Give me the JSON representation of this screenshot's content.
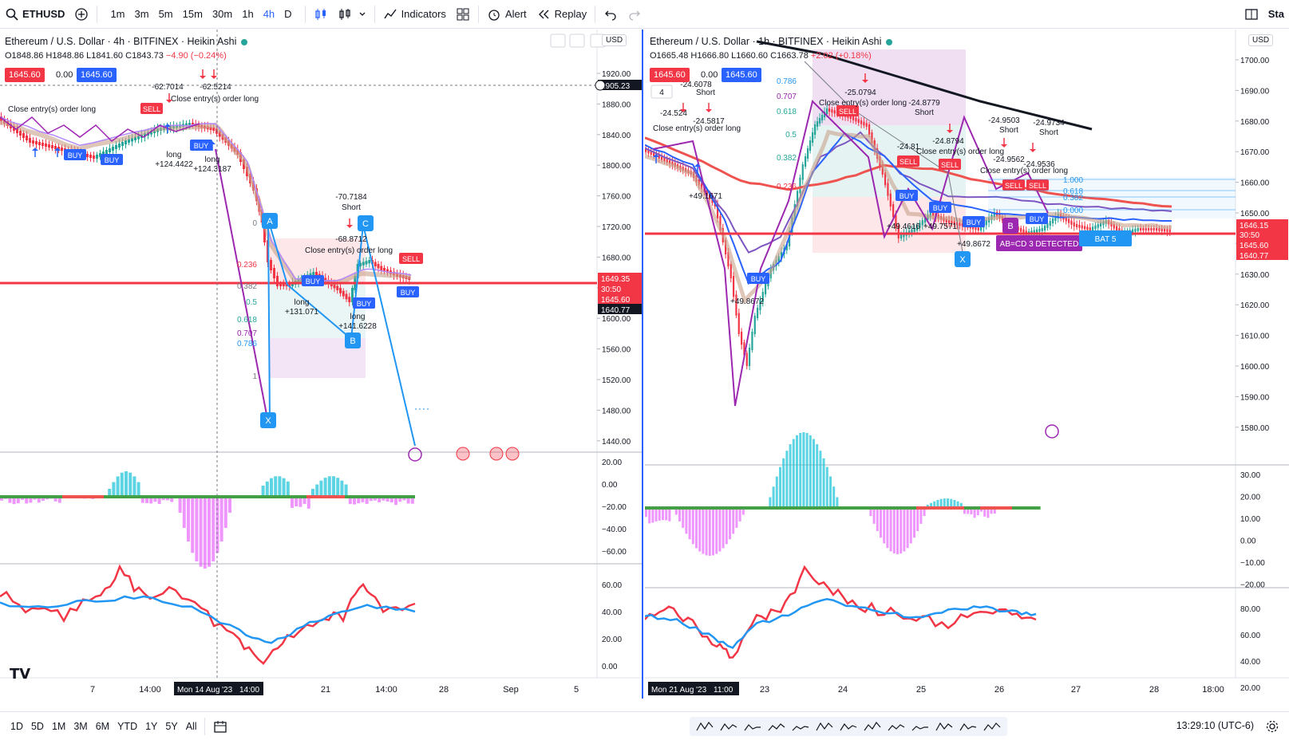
{
  "toolbar": {
    "symbol": "ETHUSD",
    "timeframes": [
      "1m",
      "3m",
      "5m",
      "15m",
      "30m",
      "1h",
      "4h",
      "D"
    ],
    "active_timeframe": "4h",
    "indicators_label": "Indicators",
    "alert_label": "Alert",
    "replay_label": "Replay",
    "right_partial": "Sta"
  },
  "left_chart": {
    "title": "Ethereum / U.S. Dollar · 4h · BITFINEX · Heikin Ashi",
    "ohlc_o": "O1848.86",
    "ohlc_h": "H1848.86",
    "ohlc_l": "L1841.60",
    "ohlc_c": "C1843.73",
    "ohlc_chg": "−4.90 (−0.24%)",
    "sell_price": "1645.60",
    "spread": "0.00",
    "buy_price": "1645.60",
    "currency": "USD",
    "price_axis": [
      "1920.00",
      "1880.00",
      "1840.00",
      "1800.00",
      "1760.00",
      "1720.00",
      "1680.00",
      "1640.00",
      "1600.00",
      "1560.00",
      "1520.00",
      "1480.00",
      "1440.00"
    ],
    "crosshair_price": "1905.23",
    "last_price": "1649.35",
    "countdown": "30:50",
    "bid": "1645.60",
    "support": "1640.77",
    "macd_axis": [
      "20.00",
      "0.00",
      "−20.00",
      "−40.00",
      "−60.00"
    ],
    "rsi_axis": [
      "60.00",
      "40.00",
      "20.00",
      "0.00"
    ],
    "time_axis": [
      "7",
      "14:00",
      "21",
      "14:00",
      "28",
      "Sep",
      "5"
    ],
    "crosshair_time": "Mon 14 Aug '23",
    "crosshair_hour": "14:00",
    "crosshair_hour_right": "14:00",
    "pattern_points": [
      "X",
      "A",
      "B",
      "C"
    ],
    "fib_levels": [
      "0",
      "0.236",
      "0.382",
      "0.5",
      "0.618",
      "0.707",
      "0.786",
      "1"
    ],
    "annotations": [
      "-70.7184",
      "Short",
      "-68.8712",
      "Close entry(s) order long",
      "+131.071",
      "+141.6228",
      "long",
      "-62.7014",
      "-62.5214",
      "+124.4422",
      "+124.3187",
      "Close entry(s) order long"
    ],
    "signals": [
      "SELL",
      "BUY",
      "BUY",
      "SELL",
      "BUY"
    ]
  },
  "right_chart": {
    "title": "Ethereum / U.S. Dollar · 1h · BITFINEX · Heikin Ashi",
    "ohlc_o": "O1665.48",
    "ohlc_h": "H1666.80",
    "ohlc_l": "L1660.60",
    "ohlc_c": "C1663.78",
    "ohlc_chg": "+2.02 (+0.18%)",
    "sell_price": "1645.60",
    "spread": "0.00",
    "buy_price": "1645.60",
    "currency": "USD",
    "price_axis": [
      "1700.00",
      "1690.00",
      "1680.00",
      "1670.00",
      "1660.00",
      "1650.00",
      "1640.00",
      "1630.00",
      "1620.00",
      "1610.00",
      "1600.00",
      "1590.00",
      "1580.00"
    ],
    "last_price": "1646.15",
    "countdown": "30:50",
    "bid": "1645.60",
    "support": "1640.77",
    "macd_axis": [
      "30.00",
      "20.00",
      "10.00",
      "0.00",
      "−10.00",
      "−20.00"
    ],
    "rsi_axis": [
      "80.00",
      "60.00",
      "40.00",
      "20.00"
    ],
    "time_axis": [
      "23",
      "24",
      "25",
      "26",
      "27",
      "28",
      "18:00"
    ],
    "crosshair_time": "Mon 21 Aug '23",
    "crosshair_hour": "11:00",
    "fib_levels": [
      "0.786",
      "0.707",
      "0.618",
      "0.5",
      "0.382",
      "0.236"
    ],
    "fib_levels_right": [
      "1.000",
      "0.618",
      "0.382",
      "0.000"
    ],
    "annotations": [
      "-25.0794",
      "Close entry(s) order long",
      "-24.8779",
      "Short",
      "-24.81",
      "-24.8794",
      "-24.524",
      "-24.5817",
      "+49.1671",
      "+49.4616",
      "+49.7571",
      "+49.8672",
      "-24.9562",
      "-24.9536",
      "-24.9734",
      "Short"
    ],
    "pattern_badge": "AB=CD 3 DETECTED",
    "bat_badge": "BAT 5",
    "pattern_points": [
      "X",
      "B"
    ]
  },
  "bottom": {
    "ranges": [
      "1D",
      "5D",
      "1M",
      "3M",
      "6M",
      "YTD",
      "1Y",
      "5Y",
      "All"
    ],
    "clock": "13:29:10 (UTC-6)"
  },
  "colors": {
    "accent": "#2962ff",
    "up": "#26a69a",
    "down": "#f23645",
    "pattern": "#9c27b0",
    "harmonic": "#2196f3"
  }
}
